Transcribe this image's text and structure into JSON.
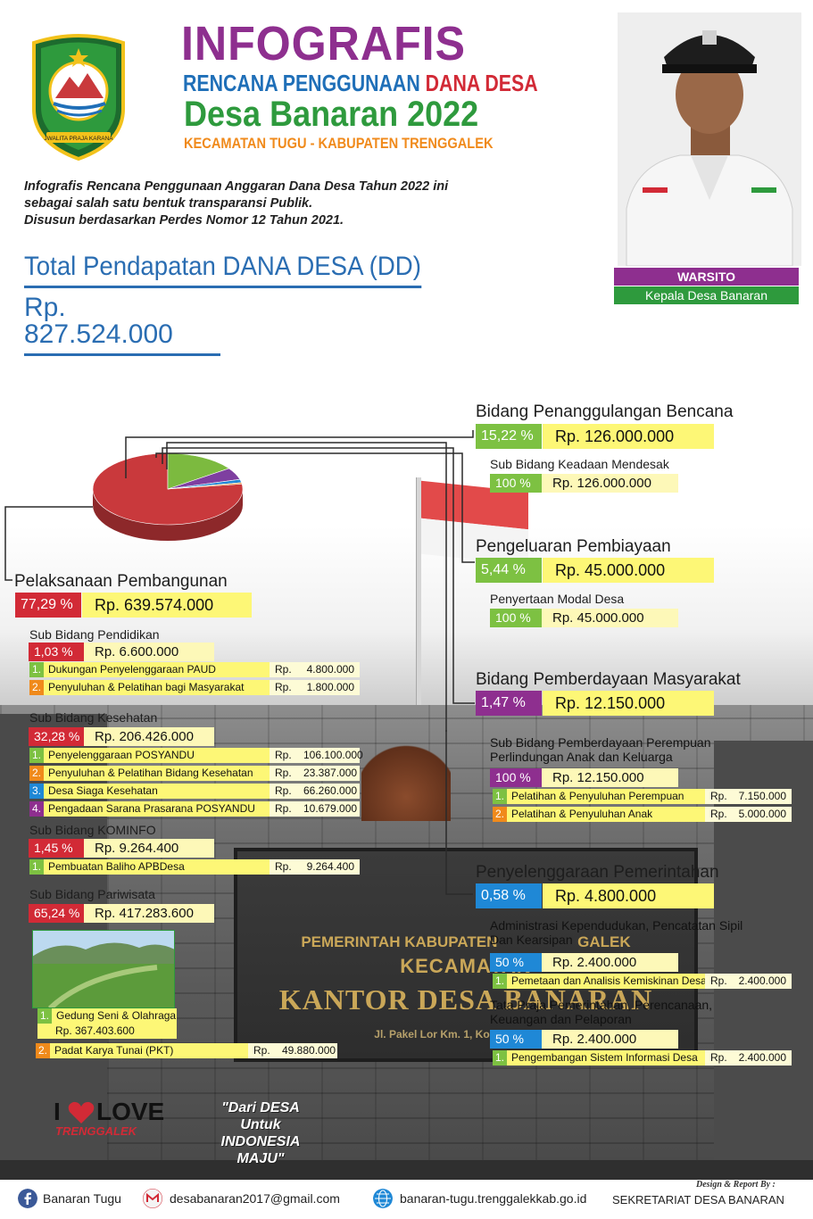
{
  "header": {
    "title": "INFOGRAFIS",
    "subtitle_part1": "RENCANA PENGGUNAAN",
    "subtitle_part2": "DANA DESA",
    "village_year": "Desa Banaran 2022",
    "district": "KECAMATAN TUGU - KABUPATEN TRENGGALEK",
    "emblem_motto": "JWALITA PRAJA KARANA"
  },
  "intro": {
    "line1": "Infografis Rencana Penggunaan Anggaran Dana Desa Tahun 2022 ini",
    "line2": "sebagai salah satu bentuk transparansi Publik.",
    "line3": "Disusun berdasarkan Perdes Nomor 12 Tahun 2021."
  },
  "total": {
    "label": "Total Pendapatan DANA DESA (DD)",
    "amount": "Rp. 827.524.000"
  },
  "head": {
    "name": "WARSITO",
    "position": "Kepala Desa Banaran"
  },
  "chart_data": {
    "type": "pie",
    "categories": [
      "Pelaksanaan Pembangunan",
      "Bidang Penanggulangan Bencana",
      "Pengeluaran Pembiayaan",
      "Bidang Pemberdayaan Masyarakat",
      "Penyelenggaraan Pemerintahan"
    ],
    "values": [
      77.29,
      15.22,
      5.44,
      1.47,
      0.58
    ],
    "colors": [
      "#c9393c",
      "#7cba3f",
      "#7e3fa0",
      "#1f88d6",
      "#f08a1b"
    ]
  },
  "pembangunan": {
    "title": "Pelaksanaan Pembangunan",
    "pct": "77,29 %",
    "amount": "Rp. 639.574.000",
    "pendidikan": {
      "title": "Sub Bidang Pendidikan",
      "pct": "1,03 %",
      "amount": "Rp. 6.600.000",
      "items": [
        {
          "num": "1.",
          "label": "Dukungan Penyelenggaraan PAUD",
          "rp": "Rp.",
          "value": "4.800.000"
        },
        {
          "num": "2.",
          "label": "Penyuluhan & Pelatihan bagi Masyarakat",
          "rp": "Rp.",
          "value": "1.800.000"
        }
      ]
    },
    "kesehatan": {
      "title": "Sub Bidang Kesehatan",
      "pct": "32,28 %",
      "amount": "Rp. 206.426.000",
      "items": [
        {
          "num": "1.",
          "label": "Penyelenggaraan POSYANDU",
          "rp": "Rp.",
          "value": "106.100.000"
        },
        {
          "num": "2.",
          "label": "Penyuluhan & Pelatihan Bidang Kesehatan",
          "rp": "Rp.",
          "value": "23.387.000"
        },
        {
          "num": "3.",
          "label": "Desa Siaga Kesehatan",
          "rp": "Rp.",
          "value": "66.260.000"
        },
        {
          "num": "4.",
          "label": "Pengadaan Sarana Prasarana POSYANDU",
          "rp": "Rp.",
          "value": "10.679.000"
        }
      ]
    },
    "kominfo": {
      "title": "Sub Bidang KOMINFO",
      "pct": "1,45 %",
      "amount": "Rp. 9.264.400",
      "items": [
        {
          "num": "1.",
          "label": "Pembuatan Baliho APBDesa",
          "rp": "Rp.",
          "value": "9.264.400"
        }
      ]
    },
    "pariwisata": {
      "title": "Sub Bidang Pariwisata",
      "pct": "65,24 %",
      "amount": "Rp. 417.283.600",
      "items": [
        {
          "num": "1.",
          "label": "Gedung Seni & Olahraga",
          "value_full": "Rp. 367.403.600"
        },
        {
          "num": "2.",
          "label": "Padat Karya Tunai (PKT)",
          "rp": "Rp.",
          "value": "49.880.000"
        }
      ]
    }
  },
  "bencana": {
    "title": "Bidang Penanggulangan Bencana",
    "pct": "15,22 %",
    "amount": "Rp. 126.000.000",
    "sub": {
      "title": "Sub Bidang Keadaan Mendesak",
      "pct": "100 %",
      "amount": "Rp. 126.000.000"
    }
  },
  "pembiayaan": {
    "title": "Pengeluaran Pembiayaan",
    "pct": "5,44 %",
    "amount": "Rp. 45.000.000",
    "sub": {
      "title": "Penyertaan Modal Desa",
      "pct": "100 %",
      "amount": "Rp. 45.000.000"
    }
  },
  "pemberdayaan": {
    "title": "Bidang Pemberdayaan Masyarakat",
    "pct": "1,47 %",
    "amount": "Rp. 12.150.000",
    "sub": {
      "title_line1": "Sub Bidang Pemberdayaan Perempuan",
      "title_line2": "Perlindungan Anak dan Keluarga",
      "pct": "100 %",
      "amount": "Rp. 12.150.000",
      "items": [
        {
          "num": "1.",
          "label": "Pelatihan & Penyuluhan Perempuan",
          "rp": "Rp.",
          "value": "7.150.000"
        },
        {
          "num": "2.",
          "label": "Pelatihan & Penyuluhan Anak",
          "rp": "Rp.",
          "value": "5.000.000"
        }
      ]
    }
  },
  "pemerintahan": {
    "title": "Penyelenggaraan Pemerintahan",
    "pct": "0,58 %",
    "amount": "Rp. 4.800.000",
    "sub1": {
      "title_line1": "Administrasi Kependudukan, Pencatatan Sipil",
      "title_line2": "Dan Kearsipan",
      "pct": "50 %",
      "amount": "Rp. 2.400.000",
      "items": [
        {
          "num": "1.",
          "label": "Pemetaan dan Analisis Kemiskinan Desa",
          "rp": "Rp.",
          "value": "2.400.000"
        }
      ]
    },
    "sub2": {
      "title_line1": "Tata Praja Pemerintahan, Perencanaan,",
      "title_line2": "Keuangan dan Pelaporan",
      "pct": "50 %",
      "amount": "Rp. 2.400.000",
      "items": [
        {
          "num": "1.",
          "label": "Pengembangan Sistem Informasi Desa",
          "rp": "Rp.",
          "value": "2.400.000"
        }
      ]
    }
  },
  "background_sign": {
    "line1": "PEMERINTAH KABUPATEN",
    "line1_tail": "GALEK",
    "line2": "KECAMATAN",
    "line3": "KANTOR DESA BANARAN",
    "line4": "Jl. Pakel Lor Km. 1, Kode Pos 66352"
  },
  "love": {
    "i": "I",
    "love": "LOVE",
    "place": "TRENGGALEK"
  },
  "slogan": {
    "line1": "\"Dari DESA",
    "line2": "Untuk",
    "line3": "INDONESIA MAJU\""
  },
  "footer": {
    "facebook": "Banaran Tugu",
    "email": "desabanaran2017@gmail.com",
    "website": "banaran-tugu.trenggalekkab.go.id",
    "credit_label": "Design & Report By :",
    "credit": "SEKRETARIAT DESA BANARAN"
  }
}
